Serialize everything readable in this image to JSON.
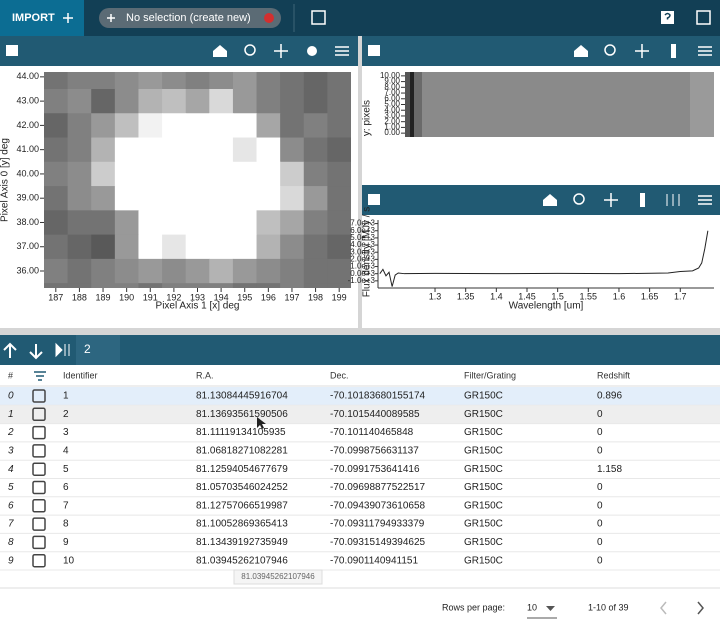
{
  "toolbar": {
    "import": "IMPORT",
    "selection": "No selection (create new)"
  },
  "image_viewer": {
    "type": "heatmap",
    "xlabel": "Pixel Axis 1 [x] deg",
    "ylabel": "Pixel Axis 0 [y] deg",
    "xlim": [
      186.5,
      199.5
    ],
    "ylim": [
      35.3,
      44.2
    ],
    "xticks": [
      187,
      188,
      189,
      190,
      191,
      192,
      193,
      194,
      195,
      196,
      197,
      198,
      199
    ],
    "yticks": [
      {
        "value": 44,
        "label": "44.00"
      },
      {
        "value": 43,
        "label": "43.00"
      },
      {
        "value": 42,
        "label": "42.00"
      },
      {
        "value": 41,
        "label": "41.00"
      },
      {
        "value": 40,
        "label": "40.00"
      },
      {
        "value": 39,
        "label": "39.00"
      },
      {
        "value": 38,
        "label": "38.00"
      },
      {
        "value": 37,
        "label": "37.00"
      },
      {
        "value": 36,
        "label": "36.00"
      }
    ],
    "x": [
      187,
      188,
      189,
      190,
      191,
      192,
      193,
      194,
      195,
      196,
      197,
      198,
      199
    ],
    "y": [
      44,
      43,
      42,
      41,
      40,
      39,
      38,
      37,
      36,
      35
    ],
    "values": [
      [
        0.45,
        0.5,
        0.5,
        0.55,
        0.6,
        0.55,
        0.5,
        0.55,
        0.6,
        0.5,
        0.45,
        0.4,
        0.45
      ],
      [
        0.5,
        0.55,
        0.4,
        0.55,
        0.7,
        0.75,
        0.65,
        0.85,
        0.6,
        0.5,
        0.45,
        0.4,
        0.45
      ],
      [
        0.4,
        0.5,
        0.6,
        0.75,
        0.95,
        1,
        1,
        1,
        1,
        0.65,
        0.45,
        0.5,
        0.45
      ],
      [
        0.45,
        0.5,
        0.7,
        1,
        1,
        1,
        1,
        1,
        0.9,
        1,
        0.55,
        0.45,
        0.4
      ],
      [
        0.5,
        0.55,
        0.8,
        1,
        1,
        1,
        1,
        1,
        1,
        1,
        0.8,
        0.5,
        0.45
      ],
      [
        0.45,
        0.55,
        0.6,
        1,
        1,
        1,
        1,
        1,
        1,
        1,
        0.85,
        0.6,
        0.45
      ],
      [
        0.4,
        0.45,
        0.45,
        0.6,
        1,
        1,
        1,
        1,
        1,
        0.75,
        0.65,
        0.5,
        0.45
      ],
      [
        0.45,
        0.4,
        0.35,
        0.6,
        1,
        0.9,
        1,
        1,
        1,
        0.7,
        0.55,
        0.45,
        0.4
      ],
      [
        0.5,
        0.45,
        0.5,
        0.55,
        0.6,
        0.55,
        0.6,
        0.7,
        0.6,
        0.55,
        0.5,
        0.45,
        0.45
      ],
      [
        0.45,
        0.45,
        0.5,
        0.5,
        0.45,
        0.5,
        0.5,
        0.5,
        0.45,
        0.45,
        0.5,
        0.45,
        0.45
      ]
    ]
  },
  "spectrum_2d": {
    "ylabel": "y: pixels",
    "ylim": [
      -0.5,
      10.5
    ],
    "yticks": [
      {
        "value": 10,
        "label": "10.00"
      },
      {
        "value": 9,
        "label": "9.00"
      },
      {
        "value": 8,
        "label": "8.00"
      },
      {
        "value": 7,
        "label": "7.00"
      },
      {
        "value": 6,
        "label": "6.00"
      },
      {
        "value": 5,
        "label": "5.00"
      },
      {
        "value": 4,
        "label": "4.00"
      },
      {
        "value": 3,
        "label": "3.00"
      },
      {
        "value": 2,
        "label": "2.00"
      },
      {
        "value": 1,
        "label": "1.00"
      },
      {
        "value": 0,
        "label": "0.00"
      }
    ]
  },
  "spectrum_1d": {
    "type": "line",
    "xlabel": "Wavelength [um]",
    "ylabel": "Flux density [MJy / s",
    "color": "#222222",
    "xlim": [
      1.207,
      1.755
    ],
    "ylim": [
      -2000,
      7500
    ],
    "xticks": [
      1.3,
      1.35,
      1.4,
      1.45,
      1.5,
      1.55,
      1.6,
      1.65,
      1.7
    ],
    "yticks": [
      {
        "value": 7000,
        "label": "7.0e+3"
      },
      {
        "value": 6000,
        "label": "6.0e+3"
      },
      {
        "value": 5000,
        "label": "5.0e+3"
      },
      {
        "value": 4000,
        "label": "4.0e+3"
      },
      {
        "value": 3000,
        "label": "3.0e+3"
      },
      {
        "value": 2000,
        "label": "2.0e+3"
      },
      {
        "value": 1000,
        "label": "1.0e+3"
      },
      {
        "value": 0,
        "label": "0.0e+3"
      },
      {
        "value": -1000,
        "label": "-1.0e+3"
      }
    ],
    "x": [
      1.21,
      1.215,
      1.22,
      1.225,
      1.23,
      1.235,
      1.24,
      1.25,
      1.3,
      1.4,
      1.5,
      1.6,
      1.68,
      1.7,
      1.72,
      1.73,
      1.735,
      1.74,
      1.745
    ],
    "values": [
      0,
      600,
      -300,
      200,
      -1800,
      -200,
      100,
      0,
      50,
      0,
      50,
      0,
      100,
      300,
      400,
      800,
      1500,
      3500,
      6000
    ]
  },
  "table": {
    "count": "2",
    "columns": [
      "#",
      "Identifier",
      "R.A.",
      "Dec.",
      "Filter/Grating",
      "Redshift"
    ],
    "rows": [
      [
        "0",
        "1",
        "81.13084445916704",
        "-70.10183680155174",
        "GR150C",
        "0.896"
      ],
      [
        "1",
        "2",
        "81.13693561590506",
        "-70.1015440089585",
        "GR150C",
        "0"
      ],
      [
        "2",
        "3",
        "81.11119134105935",
        "-70.101140465848",
        "GR150C",
        "0"
      ],
      [
        "3",
        "4",
        "81.06818271082281",
        "-70.0998756631137",
        "GR150C",
        "0"
      ],
      [
        "4",
        "5",
        "81.12594054677679",
        "-70.0991753641416",
        "GR150C",
        "1.158"
      ],
      [
        "5",
        "6",
        "81.05703546024252",
        "-70.09698877522517",
        "GR150C",
        "0"
      ],
      [
        "6",
        "7",
        "81.12757066519987",
        "-70.09439073610658",
        "GR150C",
        "0"
      ],
      [
        "7",
        "8",
        "81.10052869365413",
        "-70.09311794933379",
        "GR150C",
        "0"
      ],
      [
        "8",
        "9",
        "81.13439192735949",
        "-70.09315149394625",
        "GR150C",
        "0"
      ],
      [
        "9",
        "10",
        "81.03945262107946",
        "-70.0901140941151",
        "GR150C",
        "0"
      ]
    ],
    "tooltip": "81.03945262107946",
    "rows_per_page_label": "Rows per page:",
    "rows_per_page": "10",
    "range": "1-10 of 39"
  }
}
